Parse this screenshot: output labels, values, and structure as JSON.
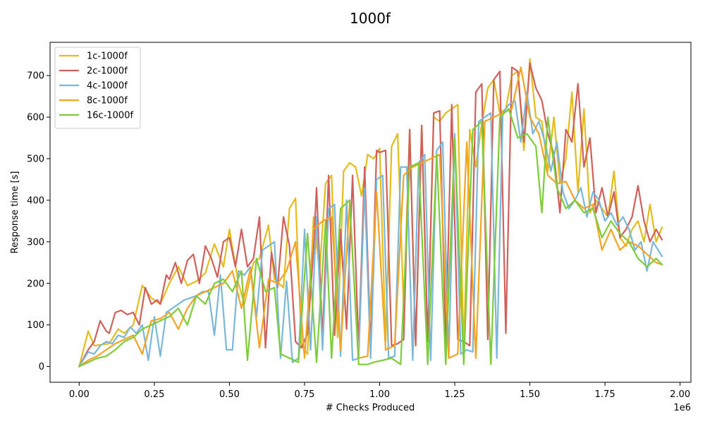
{
  "chart_data": {
    "type": "line",
    "title": "1000f",
    "xlabel": "# Checks Produced",
    "ylabel": "Response time [s]",
    "x_offset_label": "1e6",
    "xlim": [
      -0.097,
      2.036
    ],
    "ylim": [
      -38,
      780
    ],
    "x_ticks": [
      0.0,
      0.25,
      0.5,
      0.75,
      1.0,
      1.25,
      1.5,
      1.75,
      2.0
    ],
    "x_tick_labels": [
      "0.00",
      "0.25",
      "0.50",
      "0.75",
      "1.00",
      "1.25",
      "1.50",
      "1.75",
      "2.00"
    ],
    "y_ticks": [
      0,
      100,
      200,
      300,
      400,
      500,
      600,
      700
    ],
    "y_tick_labels": [
      "0",
      "100",
      "200",
      "300",
      "400",
      "500",
      "600",
      "700"
    ],
    "legend_position": "top-left",
    "series": [
      {
        "name": "1c-1000f",
        "color": "#e4bc1d",
        "x": [
          0.0,
          0.03,
          0.05,
          0.1,
          0.13,
          0.15,
          0.18,
          0.21,
          0.24,
          0.27,
          0.3,
          0.33,
          0.36,
          0.39,
          0.42,
          0.45,
          0.48,
          0.5,
          0.53,
          0.55,
          0.58,
          0.6,
          0.63,
          0.65,
          0.68,
          0.7,
          0.72,
          0.74,
          0.76,
          0.78,
          0.8,
          0.82,
          0.84,
          0.86,
          0.88,
          0.9,
          0.92,
          0.94,
          0.96,
          0.98,
          1.0,
          1.02,
          1.04,
          1.06,
          1.08,
          1.1,
          1.12,
          1.14,
          1.16,
          1.18,
          1.2,
          1.22,
          1.24,
          1.26,
          1.28,
          1.3,
          1.32,
          1.34,
          1.36,
          1.38,
          1.4,
          1.42,
          1.44,
          1.46,
          1.48,
          1.5,
          1.52,
          1.54,
          1.56,
          1.58,
          1.6,
          1.62,
          1.64,
          1.66,
          1.68,
          1.7,
          1.72,
          1.74,
          1.76,
          1.78,
          1.8,
          1.82,
          1.84,
          1.86,
          1.88,
          1.9,
          1.92,
          1.94
        ],
        "values": [
          0,
          85,
          50,
          55,
          90,
          80,
          100,
          195,
          165,
          150,
          200,
          240,
          195,
          205,
          225,
          295,
          240,
          330,
          200,
          150,
          250,
          260,
          340,
          210,
          190,
          380,
          405,
          50,
          30,
          360,
          230,
          440,
          460,
          70,
          470,
          490,
          480,
          410,
          510,
          500,
          525,
          60,
          530,
          560,
          140,
          570,
          50,
          580,
          60,
          600,
          590,
          610,
          620,
          630,
          40,
          570,
          480,
          585,
          670,
          690,
          610,
          620,
          700,
          710,
          520,
          740,
          600,
          590,
          470,
          600,
          440,
          500,
          660,
          420,
          620,
          370,
          400,
          380,
          360,
          470,
          310,
          290,
          330,
          350,
          300,
          390,
          300,
          335
        ]
      },
      {
        "name": "2c-1000f",
        "color": "#d0605c",
        "x": [
          0.0,
          0.03,
          0.05,
          0.07,
          0.09,
          0.1,
          0.12,
          0.14,
          0.16,
          0.18,
          0.2,
          0.22,
          0.24,
          0.26,
          0.27,
          0.29,
          0.3,
          0.32,
          0.34,
          0.36,
          0.38,
          0.4,
          0.42,
          0.44,
          0.46,
          0.48,
          0.5,
          0.52,
          0.54,
          0.56,
          0.58,
          0.6,
          0.62,
          0.64,
          0.66,
          0.68,
          0.7,
          0.72,
          0.74,
          0.76,
          0.78,
          0.79,
          0.81,
          0.83,
          0.85,
          0.87,
          0.89,
          0.91,
          0.93,
          0.95,
          0.97,
          0.99,
          1.0,
          1.02,
          1.04,
          1.06,
          1.08,
          1.1,
          1.12,
          1.14,
          1.16,
          1.18,
          1.2,
          1.22,
          1.24,
          1.26,
          1.28,
          1.3,
          1.32,
          1.34,
          1.36,
          1.38,
          1.4,
          1.42,
          1.44,
          1.46,
          1.48,
          1.5,
          1.52,
          1.54,
          1.56,
          1.58,
          1.6,
          1.62,
          1.64,
          1.66,
          1.68,
          1.7,
          1.72,
          1.74,
          1.76,
          1.78,
          1.8,
          1.82,
          1.84,
          1.86,
          1.88,
          1.9,
          1.92,
          1.94
        ],
        "values": [
          0,
          40,
          60,
          110,
          85,
          80,
          130,
          135,
          125,
          130,
          100,
          190,
          150,
          160,
          150,
          220,
          210,
          250,
          200,
          255,
          270,
          200,
          290,
          260,
          215,
          300,
          310,
          240,
          330,
          240,
          260,
          360,
          45,
          275,
          190,
          360,
          290,
          60,
          45,
          80,
          280,
          430,
          65,
          460,
          75,
          330,
          90,
          460,
          45,
          480,
          45,
          520,
          515,
          520,
          50,
          55,
          65,
          570,
          50,
          580,
          60,
          610,
          615,
          55,
          630,
          65,
          60,
          50,
          660,
          680,
          65,
          690,
          710,
          80,
          720,
          710,
          540,
          730,
          670,
          640,
          560,
          510,
          370,
          570,
          540,
          680,
          480,
          550,
          370,
          430,
          360,
          420,
          310,
          330,
          360,
          435,
          350,
          300,
          330,
          305
        ]
      },
      {
        "name": "4c-1000f",
        "color": "#7bb7d8",
        "x": [
          0.0,
          0.03,
          0.05,
          0.07,
          0.09,
          0.11,
          0.13,
          0.15,
          0.17,
          0.19,
          0.21,
          0.23,
          0.25,
          0.27,
          0.29,
          0.31,
          0.33,
          0.35,
          0.37,
          0.39,
          0.41,
          0.43,
          0.45,
          0.47,
          0.49,
          0.51,
          0.53,
          0.55,
          0.57,
          0.59,
          0.61,
          0.63,
          0.65,
          0.67,
          0.69,
          0.71,
          0.73,
          0.75,
          0.77,
          0.79,
          0.81,
          0.83,
          0.85,
          0.87,
          0.89,
          0.91,
          0.93,
          0.95,
          0.97,
          0.99,
          1.01,
          1.03,
          1.05,
          1.07,
          1.09,
          1.11,
          1.13,
          1.15,
          1.17,
          1.19,
          1.21,
          1.23,
          1.25,
          1.27,
          1.29,
          1.31,
          1.33,
          1.35,
          1.37,
          1.39,
          1.41,
          1.43,
          1.45,
          1.47,
          1.49,
          1.51,
          1.53,
          1.55,
          1.57,
          1.59,
          1.61,
          1.63,
          1.65,
          1.67,
          1.69,
          1.71,
          1.73,
          1.75,
          1.77,
          1.79,
          1.81,
          1.83,
          1.85,
          1.87,
          1.89,
          1.91,
          1.94
        ],
        "values": [
          0,
          35,
          30,
          50,
          60,
          55,
          75,
          70,
          95,
          80,
          100,
          15,
          120,
          25,
          130,
          140,
          150,
          160,
          165,
          170,
          180,
          180,
          75,
          220,
          40,
          40,
          230,
          220,
          240,
          120,
          280,
          290,
          300,
          20,
          205,
          10,
          20,
          330,
          40,
          360,
          40,
          380,
          390,
          25,
          400,
          15,
          20,
          430,
          20,
          450,
          460,
          20,
          25,
          480,
          480,
          15,
          490,
          510,
          15,
          520,
          540,
          20,
          560,
          30,
          40,
          35,
          590,
          600,
          610,
          20,
          610,
          630,
          640,
          540,
          660,
          560,
          590,
          540,
          470,
          540,
          420,
          380,
          400,
          430,
          360,
          420,
          400,
          350,
          370,
          340,
          360,
          330,
          280,
          300,
          230,
          300,
          265
        ]
      },
      {
        "name": "8c-1000f",
        "color": "#f3a425",
        "x": [
          0.0,
          0.03,
          0.06,
          0.09,
          0.12,
          0.15,
          0.18,
          0.21,
          0.24,
          0.27,
          0.3,
          0.33,
          0.36,
          0.39,
          0.42,
          0.45,
          0.48,
          0.51,
          0.54,
          0.57,
          0.6,
          0.63,
          0.66,
          0.69,
          0.72,
          0.75,
          0.78,
          0.81,
          0.84,
          0.87,
          0.9,
          0.93,
          0.96,
          0.99,
          1.02,
          1.05,
          1.08,
          1.11,
          1.14,
          1.17,
          1.2,
          1.23,
          1.26,
          1.29,
          1.32,
          1.35,
          1.38,
          1.41,
          1.44,
          1.47,
          1.5,
          1.53,
          1.56,
          1.59,
          1.62,
          1.65,
          1.68,
          1.71,
          1.74,
          1.77,
          1.8,
          1.83,
          1.86,
          1.89,
          1.92,
          1.94
        ],
        "values": [
          0,
          15,
          25,
          40,
          55,
          65,
          75,
          30,
          110,
          115,
          130,
          90,
          140,
          170,
          180,
          190,
          200,
          230,
          140,
          235,
          45,
          210,
          200,
          230,
          300,
          20,
          330,
          350,
          360,
          40,
          390,
          20,
          25,
          420,
          40,
          50,
          460,
          480,
          490,
          500,
          510,
          20,
          30,
          540,
          20,
          590,
          600,
          610,
          620,
          720,
          600,
          560,
          460,
          440,
          445,
          400,
          380,
          390,
          280,
          330,
          280,
          300,
          290,
          270,
          250,
          245
        ]
      },
      {
        "name": "16c-1000f",
        "color": "#7dcc3a",
        "x": [
          0.0,
          0.03,
          0.06,
          0.09,
          0.12,
          0.15,
          0.18,
          0.21,
          0.24,
          0.27,
          0.3,
          0.33,
          0.36,
          0.39,
          0.42,
          0.45,
          0.48,
          0.51,
          0.54,
          0.56,
          0.59,
          0.62,
          0.65,
          0.67,
          0.7,
          0.73,
          0.76,
          0.79,
          0.82,
          0.84,
          0.87,
          0.9,
          0.93,
          0.96,
          0.98,
          1.01,
          1.04,
          1.07,
          1.1,
          1.13,
          1.16,
          1.19,
          1.22,
          1.25,
          1.28,
          1.31,
          1.34,
          1.37,
          1.4,
          1.43,
          1.46,
          1.49,
          1.52,
          1.54,
          1.56,
          1.59,
          1.62,
          1.65,
          1.68,
          1.71,
          1.74,
          1.77,
          1.8,
          1.83,
          1.86,
          1.89,
          1.92,
          1.94
        ],
        "values": [
          0,
          10,
          20,
          25,
          40,
          60,
          70,
          90,
          100,
          110,
          120,
          140,
          100,
          170,
          150,
          200,
          210,
          180,
          230,
          15,
          260,
          180,
          190,
          30,
          20,
          10,
          320,
          10,
          350,
          20,
          380,
          400,
          5,
          5,
          10,
          15,
          20,
          5,
          480,
          490,
          5,
          510,
          5,
          550,
          5,
          570,
          590,
          5,
          600,
          620,
          550,
          560,
          530,
          370,
          600,
          430,
          380,
          400,
          370,
          380,
          310,
          350,
          320,
          300,
          260,
          240,
          260,
          245
        ]
      }
    ]
  }
}
